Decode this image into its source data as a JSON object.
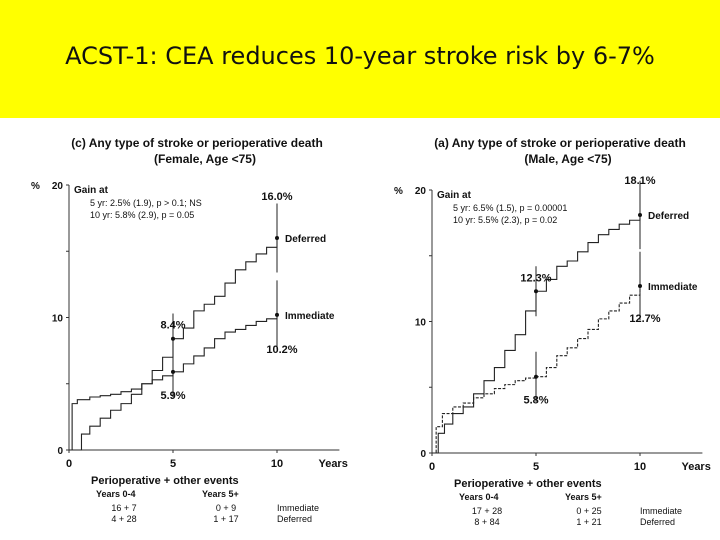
{
  "slide": {
    "title": "ACST-1: CEA reduces 10-year stroke risk by 6-7%",
    "banner_color": "#ffff00"
  },
  "chart_data": [
    {
      "type": "line",
      "title": "(c) Any type of stroke or perioperative death",
      "subtitle": "(Female, Age <75)",
      "ylabel": "%",
      "xlabel": "Years",
      "yticks": [
        "20",
        "10",
        "0"
      ],
      "xticks": [
        "0",
        "5",
        "10"
      ],
      "xlim": [
        0,
        13
      ],
      "ylim": [
        0,
        20
      ],
      "gain": {
        "heading": "Gain at",
        "line5": "5 yr: 2.5% (1.9), p > 0.1; NS",
        "line10": "10 yr: 5.8% (2.9), p = 0.05"
      },
      "series": [
        {
          "name": "Deferred",
          "x": [
            0,
            0.6,
            1,
            1.5,
            2,
            2.5,
            3,
            3.5,
            4,
            4.5,
            5,
            5.5,
            6,
            6.5,
            7,
            7.5,
            8,
            8.5,
            9,
            9.5,
            10
          ],
          "y": [
            0,
            1.2,
            1.8,
            2.4,
            3,
            3.5,
            4.2,
            5,
            6,
            7,
            8.4,
            9.2,
            10.5,
            11,
            11.6,
            12.6,
            13.6,
            14.2,
            14.8,
            15.3,
            16.0
          ],
          "end_label": "Deferred",
          "val5": "8.4%",
          "val10": "16.0%"
        },
        {
          "name": "Immediate",
          "x": [
            0,
            0.15,
            0.4,
            1,
            1.5,
            2,
            2.5,
            3,
            3.5,
            4,
            4.5,
            5,
            5.5,
            6,
            6.5,
            7,
            7.5,
            8,
            8.5,
            9,
            9.5,
            10
          ],
          "y": [
            0,
            3.5,
            3.8,
            4,
            4.1,
            4.2,
            4.4,
            4.6,
            5,
            5.3,
            5.6,
            5.9,
            6.5,
            7.1,
            7.7,
            8.4,
            8.9,
            9.1,
            9.4,
            9.7,
            9.9,
            10.2
          ],
          "end_label": "Immediate",
          "val5": "5.9%",
          "val10": "10.2%"
        }
      ],
      "events": {
        "heading": "Perioperative + other events",
        "col1": "Years 0-4",
        "col2": "Years 5+",
        "immediate": [
          "16 + 7",
          "0 + 9"
        ],
        "deferred": [
          "4 + 28",
          "1 + 17"
        ],
        "row_labels": [
          "Immediate",
          "Deferred"
        ]
      }
    },
    {
      "type": "line",
      "title": "(a) Any type of stroke or perioperative death",
      "subtitle": "(Male, Age <75)",
      "ylabel": "%",
      "xlabel": "Years",
      "yticks": [
        "20",
        "10",
        "0"
      ],
      "xticks": [
        "0",
        "5",
        "10"
      ],
      "xlim": [
        0,
        13
      ],
      "ylim": [
        0,
        20
      ],
      "gain": {
        "heading": "Gain at",
        "line5": "5 yr: 6.5% (1.5), p = 0.00001",
        "line10": "10 yr: 5.5% (2.3), p = 0.02"
      },
      "series": [
        {
          "name": "Deferred",
          "x": [
            0,
            0.3,
            0.6,
            1,
            1.5,
            2,
            2.5,
            3,
            3.5,
            4,
            4.5,
            5,
            5.5,
            6,
            6.5,
            7,
            7.5,
            8,
            8.5,
            9,
            9.5,
            10
          ],
          "y": [
            0,
            1.5,
            2.2,
            3,
            3.5,
            4.5,
            5.5,
            6.5,
            7.8,
            9,
            10.8,
            12.3,
            13.2,
            14.2,
            14.6,
            15.3,
            16,
            16.6,
            17,
            17.4,
            17.7,
            18.1
          ],
          "end_label": "Deferred",
          "val5": "12.3%",
          "val10": "18.1%"
        },
        {
          "name": "Immediate",
          "x": [
            0,
            0.2,
            0.5,
            1,
            1.5,
            2,
            2.5,
            3,
            3.5,
            4,
            4.5,
            5,
            5.5,
            6,
            6.5,
            7,
            7.5,
            8,
            8.5,
            9,
            9.5,
            10
          ],
          "y": [
            0,
            2,
            3,
            3.5,
            3.8,
            4.2,
            4.5,
            4.9,
            5.2,
            5.5,
            5.7,
            5.8,
            6.5,
            7.4,
            8,
            8.7,
            9.4,
            10.2,
            10.8,
            11.4,
            12,
            12.7
          ],
          "end_label": "Immediate",
          "val5": "5.8%",
          "val10": "12.7%"
        }
      ],
      "events": {
        "heading": "Perioperative + other events",
        "col1": "Years 0-4",
        "col2": "Years 5+",
        "immediate": [
          "17 + 28",
          "0 + 25"
        ],
        "deferred": [
          "8 + 84",
          "1 + 21"
        ],
        "row_labels": [
          "Immediate",
          "Deferred"
        ]
      }
    }
  ]
}
